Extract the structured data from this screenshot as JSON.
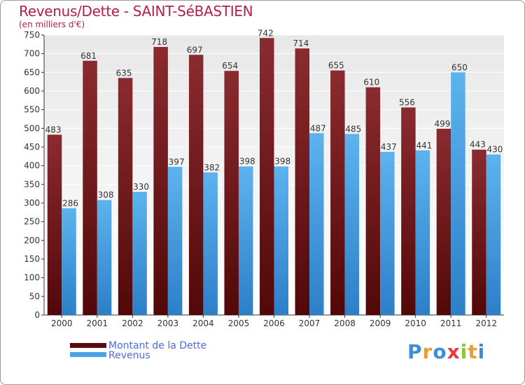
{
  "title": "Revenus/Dette - SAINT-SéBASTIEN",
  "subtitle": "(en milliers d'€)",
  "logo": "Proxiti",
  "colors": {
    "dette": "#7a2126",
    "revenus": "#4aa3e6",
    "title": "#b21f4f",
    "legend": "#4a6be0"
  },
  "chart_data": {
    "type": "bar",
    "categories": [
      "2000",
      "2001",
      "2002",
      "2003",
      "2004",
      "2005",
      "2006",
      "2007",
      "2008",
      "2009",
      "2010",
      "2011",
      "2012"
    ],
    "series": [
      {
        "name": "Montant de la Dette",
        "values": [
          483,
          681,
          635,
          718,
          697,
          654,
          742,
          714,
          655,
          610,
          556,
          499,
          443
        ]
      },
      {
        "name": "Revenus",
        "values": [
          286,
          308,
          330,
          397,
          382,
          398,
          398,
          487,
          485,
          437,
          441,
          650,
          430
        ]
      }
    ],
    "ylim": [
      0,
      750
    ],
    "yticks": [
      0,
      50,
      100,
      150,
      200,
      250,
      300,
      350,
      400,
      450,
      500,
      550,
      600,
      650,
      700,
      750
    ],
    "grid": true,
    "legend_position": "bottom-left"
  }
}
